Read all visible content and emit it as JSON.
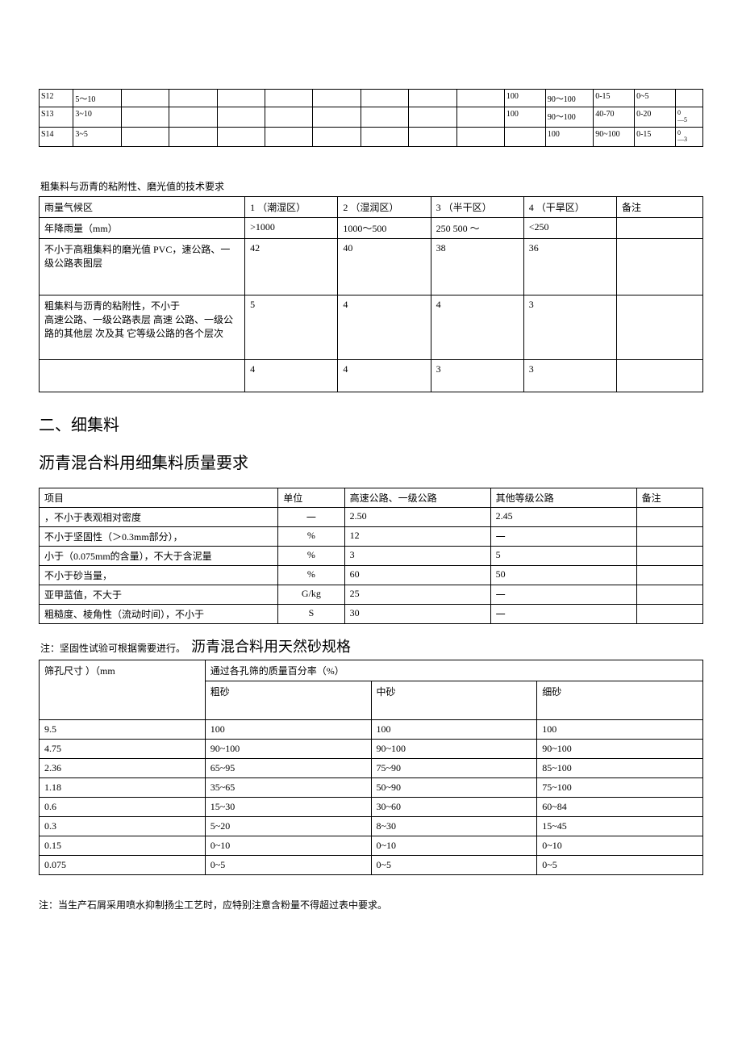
{
  "table1": {
    "rows": [
      {
        "code": "S12",
        "range": "5〜10",
        "c10": "100",
        "c11": "90〜100",
        "c12": "0-15",
        "c13": "0~5",
        "c14a": "",
        "c14b": ""
      },
      {
        "code": "S13",
        "range": "3~10",
        "c10": "100",
        "c11": "90〜100",
        "c12": "40-70",
        "c13": "0-20",
        "c14a": "0",
        "c14b": "5"
      },
      {
        "code": "S14",
        "range": "3~5",
        "c10": "",
        "c11": "100",
        "c12": "90~100",
        "c13": "0-15",
        "c14a": "0",
        "c14b": "3"
      }
    ]
  },
  "table2": {
    "caption": "粗集料与沥青的粘附性、磨光值的技术要求",
    "header": [
      "雨量气候区",
      "1 （潮湿区）",
      "2 （湿润区）",
      "3 （半干区）",
      "4 （干旱区）",
      "备注"
    ],
    "rows": [
      [
        "年降雨量（mm）",
        ">1000",
        "1000〜500",
        "250 500 〜",
        "<250",
        ""
      ],
      [
        "不小于高粗集料的磨光值       PVC，速公路、一级公路表图层",
        "42",
        "40",
        "38",
        "36",
        ""
      ],
      [
        "   粗集料与沥青的粘附性，不小于\n高速公路、一级公路表层  高速  公路、一级公路的其他层  次及其  它等级公路的各个层次",
        "5",
        "4",
        "4",
        "3",
        ""
      ],
      [
        "",
        "4",
        "4",
        "3",
        "3",
        ""
      ]
    ]
  },
  "section2_title": "二、细集料",
  "section2_subtitle": "沥青混合料用细集料质量要求",
  "table3": {
    "header": [
      "项目",
      "单位",
      "高速公路、一级公路",
      "其他等级公路",
      "备注"
    ],
    "rows": [
      [
        "，不小于表观相对密度",
        "一",
        "2.50",
        "2.45",
        ""
      ],
      [
        "不小于坚固性（＞0.3mm部分），",
        "%",
        "12",
        "一",
        ""
      ],
      [
        "   小于（0.075mm的含量），不大于含泥量",
        "%",
        "3",
        "5",
        ""
      ],
      [
        "   不小于砂当量，",
        "%",
        "60",
        "50",
        ""
      ],
      [
        "亚甲蓝值，不大于",
        "G/kg",
        "25",
        "一",
        ""
      ],
      [
        "粗糙度、棱角性（流动时间），不小于",
        "S",
        "30",
        "一",
        ""
      ]
    ]
  },
  "note_inline_small": "注：坚固性试验可根据需要进行。",
  "note_inline_big": "沥青混合料用天然砂规格",
  "table4": {
    "top_left": "筛孔尺寸     ）（mm",
    "top_right": "通过各孔筛的质量百分率（%）",
    "sub": [
      "粗砂",
      "中砂",
      "细砂"
    ],
    "rows": [
      [
        "9.5",
        "100",
        "100",
        "100"
      ],
      [
        "4.75",
        "90~100",
        "90~100",
        "90~100"
      ],
      [
        "2.36",
        "65~95",
        "75~90",
        "85~100"
      ],
      [
        "1.18",
        "35~65",
        "50~90",
        "75~100"
      ],
      [
        "0.6",
        "15~30",
        "30~60",
        "60~84"
      ],
      [
        "0.3",
        "5~20",
        "8~30",
        "15~45"
      ],
      [
        "0.15",
        "0~10",
        "0~10",
        "0~10"
      ],
      [
        "0.075",
        "0~5",
        "0~5",
        "0~5"
      ]
    ]
  },
  "footnote": "注：当生产石屑采用喷水抑制扬尘工艺时，应特别注意含粉量不得超过表中要求。"
}
